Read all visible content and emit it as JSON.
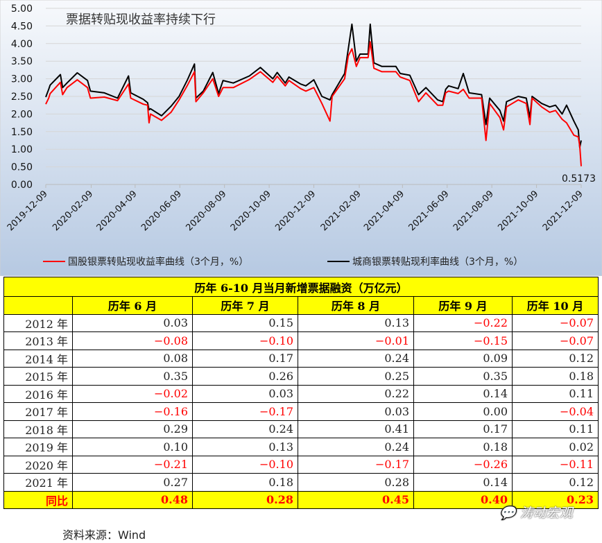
{
  "chart_data": {
    "type": "line",
    "title": "票据转贴现收益率持续下行",
    "ylim": [
      0,
      5
    ],
    "yticks": [
      "0.00",
      "0.50",
      "1.00",
      "1.50",
      "2.00",
      "2.50",
      "3.00",
      "3.50",
      "4.00",
      "4.50",
      "5.00"
    ],
    "xticks": [
      "2019-12-09",
      "2020-02-09",
      "2020-04-09",
      "2020-06-09",
      "2020-08-09",
      "2020-10-09",
      "2020-12-09",
      "2021-02-09",
      "2021-04-09",
      "2021-06-09",
      "2021-08-09",
      "2021-10-09",
      "2021-12-09"
    ],
    "xlim": [
      "2019-12-09",
      "2021-12-09"
    ],
    "grid": true,
    "legend_position": "bottom",
    "annotation": "0.5173",
    "x": [
      "2019-12-09",
      "2019-12-13",
      "2019-12-15",
      "2019-12-29",
      "2020-01-01",
      "2020-01-07",
      "2020-01-21",
      "2020-02-04",
      "2020-02-08",
      "2020-02-27",
      "2020-03-16",
      "2020-03-31",
      "2020-04-03",
      "2020-04-20",
      "2020-04-26",
      "2020-04-28",
      "2020-04-30",
      "2020-05-15",
      "2020-05-28",
      "2020-06-08",
      "2020-06-19",
      "2020-06-29",
      "2020-07-01",
      "2020-07-11",
      "2020-07-24",
      "2020-08-01",
      "2020-08-07",
      "2020-08-21",
      "2020-09-12",
      "2020-09-27",
      "2020-10-14",
      "2020-10-20",
      "2020-10-31",
      "2020-11-05",
      "2020-11-21",
      "2020-11-28",
      "2020-12-09",
      "2020-12-20",
      "2020-12-31",
      "2021-01-03",
      "2021-01-20",
      "2021-01-25",
      "2021-01-30",
      "2021-02-05",
      "2021-02-10",
      "2021-02-21",
      "2021-02-24",
      "2021-03-01",
      "2021-03-12",
      "2021-03-31",
      "2021-04-06",
      "2021-04-19",
      "2021-05-01",
      "2021-05-11",
      "2021-05-27",
      "2021-06-03",
      "2021-06-07",
      "2021-06-11",
      "2021-06-24",
      "2021-07-01",
      "2021-07-09",
      "2021-07-26",
      "2021-08-01",
      "2021-08-06",
      "2021-08-20",
      "2021-08-25",
      "2021-08-29",
      "2021-09-14",
      "2021-09-25",
      "2021-09-30",
      "2021-10-03",
      "2021-10-16",
      "2021-10-27",
      "2021-11-04",
      "2021-11-13",
      "2021-11-19",
      "2021-11-29",
      "2021-12-05",
      "2021-12-07",
      "2021-12-09"
    ],
    "series": [
      {
        "name": "国股银票转贴现收益率曲线（3个月，%）",
        "color": "#ff0000",
        "values": [
          2.28,
          2.45,
          2.58,
          2.9,
          2.55,
          2.75,
          2.97,
          2.75,
          2.45,
          2.48,
          2.38,
          2.85,
          2.45,
          2.28,
          2.25,
          1.75,
          2.0,
          1.82,
          2.05,
          2.4,
          2.8,
          3.2,
          2.35,
          2.6,
          3.0,
          2.5,
          2.75,
          2.75,
          2.98,
          3.2,
          2.9,
          3.07,
          2.8,
          2.95,
          2.72,
          2.65,
          2.75,
          2.3,
          1.8,
          2.5,
          3.0,
          3.65,
          3.85,
          3.35,
          3.6,
          3.6,
          4.05,
          3.3,
          3.2,
          3.2,
          3.05,
          2.95,
          2.35,
          2.6,
          2.25,
          2.25,
          2.6,
          2.65,
          2.58,
          2.7,
          2.45,
          2.45,
          1.25,
          2.3,
          1.9,
          1.55,
          2.2,
          2.4,
          2.3,
          1.7,
          2.45,
          2.2,
          2.05,
          2.1,
          1.85,
          1.75,
          1.4,
          1.35,
          1.1,
          0.5173
        ]
      },
      {
        "name": "城商银票转贴现利率曲线（3个月，%）",
        "color": "#000000",
        "values": [
          2.48,
          2.7,
          2.82,
          3.12,
          2.75,
          2.88,
          3.17,
          2.95,
          2.65,
          2.6,
          2.45,
          3.08,
          2.6,
          2.42,
          2.32,
          2.12,
          2.15,
          1.95,
          2.22,
          2.5,
          2.95,
          3.42,
          2.45,
          2.65,
          3.18,
          2.58,
          2.95,
          2.88,
          3.08,
          3.32,
          3.0,
          3.18,
          2.88,
          3.05,
          2.85,
          2.8,
          2.97,
          2.5,
          2.4,
          2.55,
          3.15,
          3.85,
          4.55,
          3.5,
          3.7,
          3.7,
          4.55,
          3.45,
          3.35,
          3.35,
          3.15,
          3.1,
          2.55,
          2.75,
          2.4,
          2.35,
          2.7,
          2.8,
          2.72,
          3.15,
          2.6,
          2.55,
          1.7,
          2.45,
          2.1,
          1.8,
          2.35,
          2.5,
          2.45,
          1.9,
          2.5,
          2.3,
          2.2,
          2.25,
          2.0,
          2.25,
          1.8,
          1.55,
          1.05,
          1.25
        ]
      }
    ]
  },
  "table": {
    "title": "历年 6-10 月当月新增票据融资（万亿元）",
    "headers": [
      "",
      "历年 6 月",
      "历年 7 月",
      "历年 8 月",
      "历年 9 月",
      "历年 10 月"
    ],
    "rows": [
      {
        "year": "2012 年",
        "values": [
          "0.03",
          "0.15",
          "0.13",
          "−0.22",
          "−0.07"
        ]
      },
      {
        "year": "2013 年",
        "values": [
          "−0.08",
          "−0.10",
          "−0.01",
          "−0.15",
          "−0.07"
        ]
      },
      {
        "year": "2014 年",
        "values": [
          "0.08",
          "0.17",
          "0.24",
          "0.09",
          "0.12"
        ]
      },
      {
        "year": "2015 年",
        "values": [
          "0.35",
          "0.26",
          "0.25",
          "0.35",
          "0.18"
        ]
      },
      {
        "year": "2016 年",
        "values": [
          "−0.02",
          "0.03",
          "0.22",
          "0.14",
          "0.11"
        ]
      },
      {
        "year": "2017 年",
        "values": [
          "−0.16",
          "−0.17",
          "0.03",
          "0.00",
          "−0.04"
        ]
      },
      {
        "year": "2018 年",
        "values": [
          "0.29",
          "0.24",
          "0.41",
          "0.17",
          "0.11"
        ]
      },
      {
        "year": "2019 年",
        "values": [
          "0.10",
          "0.13",
          "0.24",
          "0.18",
          "0.02"
        ]
      },
      {
        "year": "2020 年",
        "values": [
          "−0.21",
          "−0.10",
          "−0.17",
          "−0.26",
          "−0.11"
        ]
      },
      {
        "year": "2021 年",
        "values": [
          "0.27",
          "0.18",
          "0.28",
          "0.14",
          "0.12"
        ]
      }
    ],
    "yoy": {
      "label": "同比",
      "values": [
        "0.48",
        "0.28",
        "0.45",
        "0.40",
        "0.23"
      ]
    },
    "colors": {
      "header_bg": "#ffff00",
      "negative": "#ff0000"
    }
  },
  "source": "资料来源：Wind",
  "watermark": "涛动宏观"
}
